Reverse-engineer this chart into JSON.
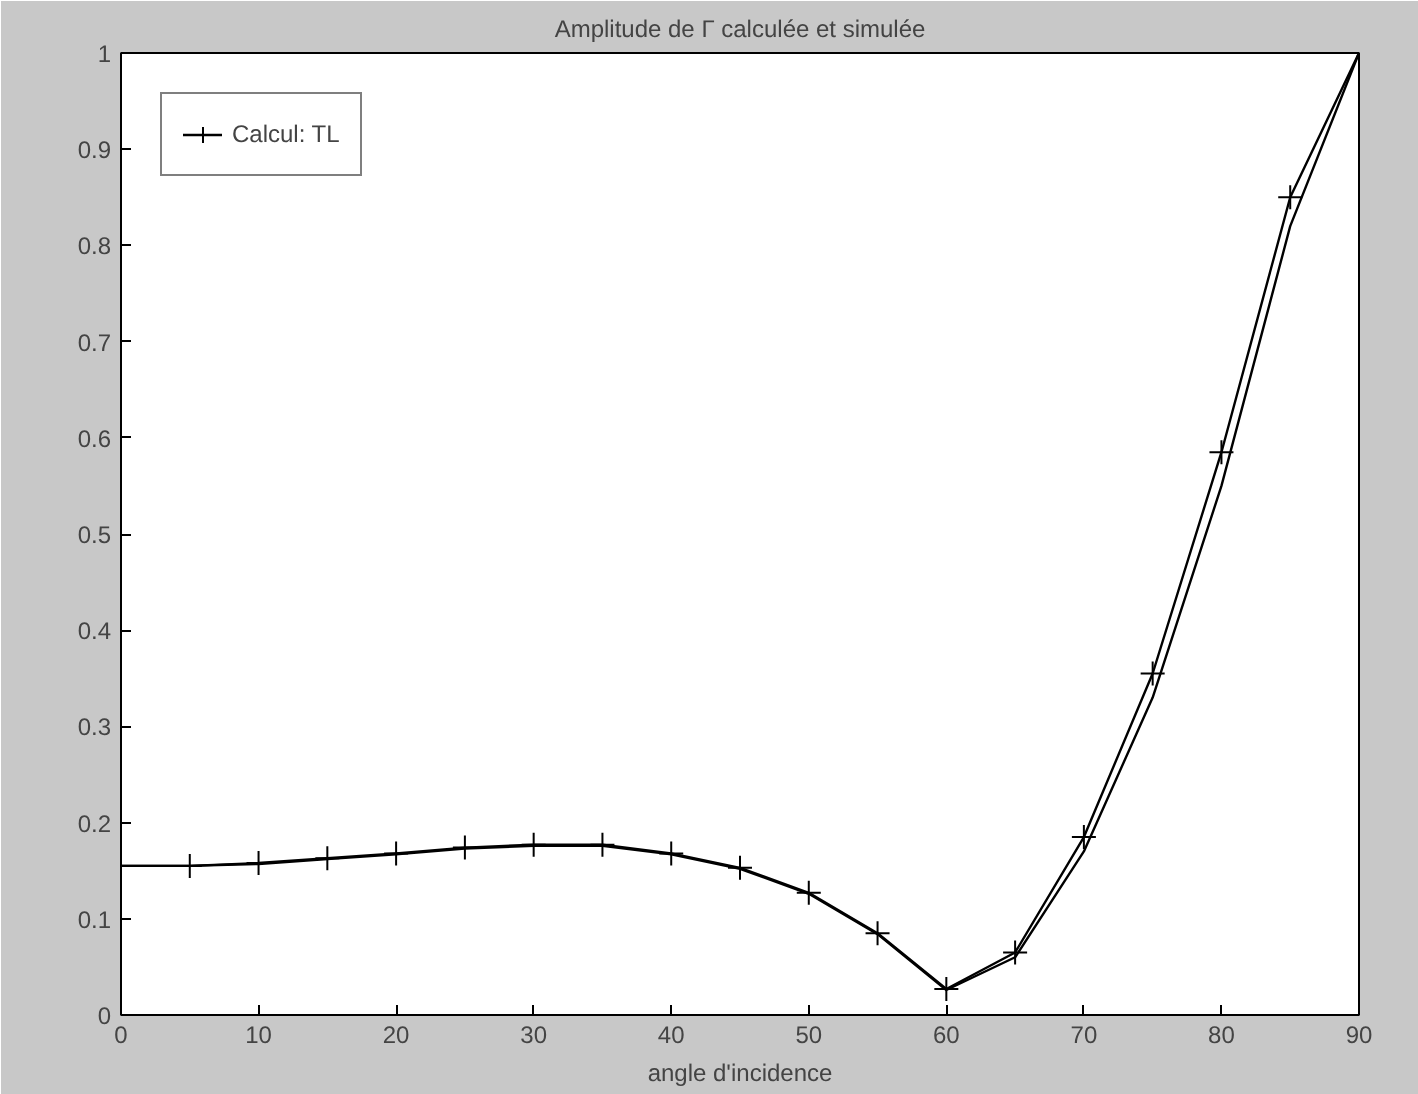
{
  "chart_data": {
    "type": "line",
    "title": "Amplitude de Γ calculée et simulée",
    "xlabel": "angle d'incidence",
    "x": [
      0,
      5,
      10,
      15,
      20,
      25,
      30,
      35,
      40,
      45,
      50,
      55,
      60,
      65,
      70,
      75,
      80,
      85,
      90
    ],
    "series": [
      {
        "color": "#000000",
        "marker": "none",
        "values": [
          0.155,
          0.155,
          0.157,
          0.162,
          0.167,
          0.173,
          0.176,
          0.176,
          0.167,
          0.152,
          0.126,
          0.084,
          0.026,
          0.06,
          0.17,
          0.33,
          0.55,
          0.82,
          1.0
        ]
      },
      {
        "name": "Calcul: TL",
        "color": "#000000",
        "marker": "cross",
        "values": [
          0.155,
          0.155,
          0.158,
          0.163,
          0.168,
          0.174,
          0.177,
          0.177,
          0.168,
          0.153,
          0.127,
          0.085,
          0.027,
          0.065,
          0.185,
          0.355,
          0.585,
          0.85,
          1.0
        ]
      }
    ],
    "xlim": [
      0,
      90
    ],
    "ylim": [
      0,
      1
    ],
    "xticks": [
      0,
      10,
      20,
      30,
      40,
      50,
      60,
      70,
      80,
      90
    ],
    "yticks": [
      0,
      0.1,
      0.2,
      0.3,
      0.4,
      0.5,
      0.6,
      0.7,
      0.8,
      0.9,
      1
    ],
    "grid": false,
    "legend": "top left",
    "line_style": "solid"
  }
}
